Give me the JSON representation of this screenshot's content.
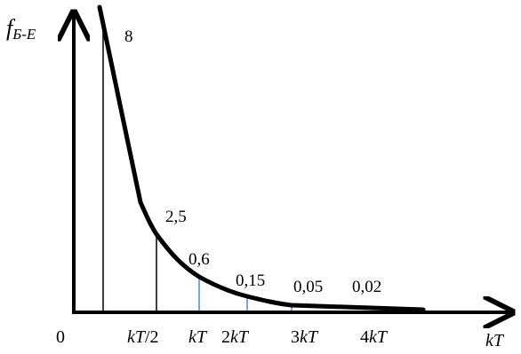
{
  "chart_data": {
    "type": "line",
    "title": "",
    "ylabel": {
      "main": "f",
      "subscript": "Б-Е"
    },
    "xlabel": "kT",
    "origin_label": "0",
    "x_tick_labels": [
      "kT/2",
      "kT",
      "2kT",
      "3kT",
      "4kT"
    ],
    "points": [
      {
        "x": 0.35,
        "y": 8,
        "label": "8"
      },
      {
        "x": 0.5,
        "y": 2.5,
        "label": "2,5"
      },
      {
        "x": 1,
        "y": 0.6,
        "label": "0,6"
      },
      {
        "x": 2,
        "y": 0.15,
        "label": "0,15"
      },
      {
        "x": 3,
        "y": 0.05,
        "label": "0,05"
      },
      {
        "x": 4,
        "y": 0.02,
        "label": "0,02"
      }
    ],
    "xlim": [
      0,
      5
    ],
    "grid": false,
    "legend": "none",
    "colors": {
      "curve": "#000000",
      "axis": "#000000",
      "drop_line_black": "#000000",
      "drop_line_blue": "#5b84c4"
    }
  }
}
